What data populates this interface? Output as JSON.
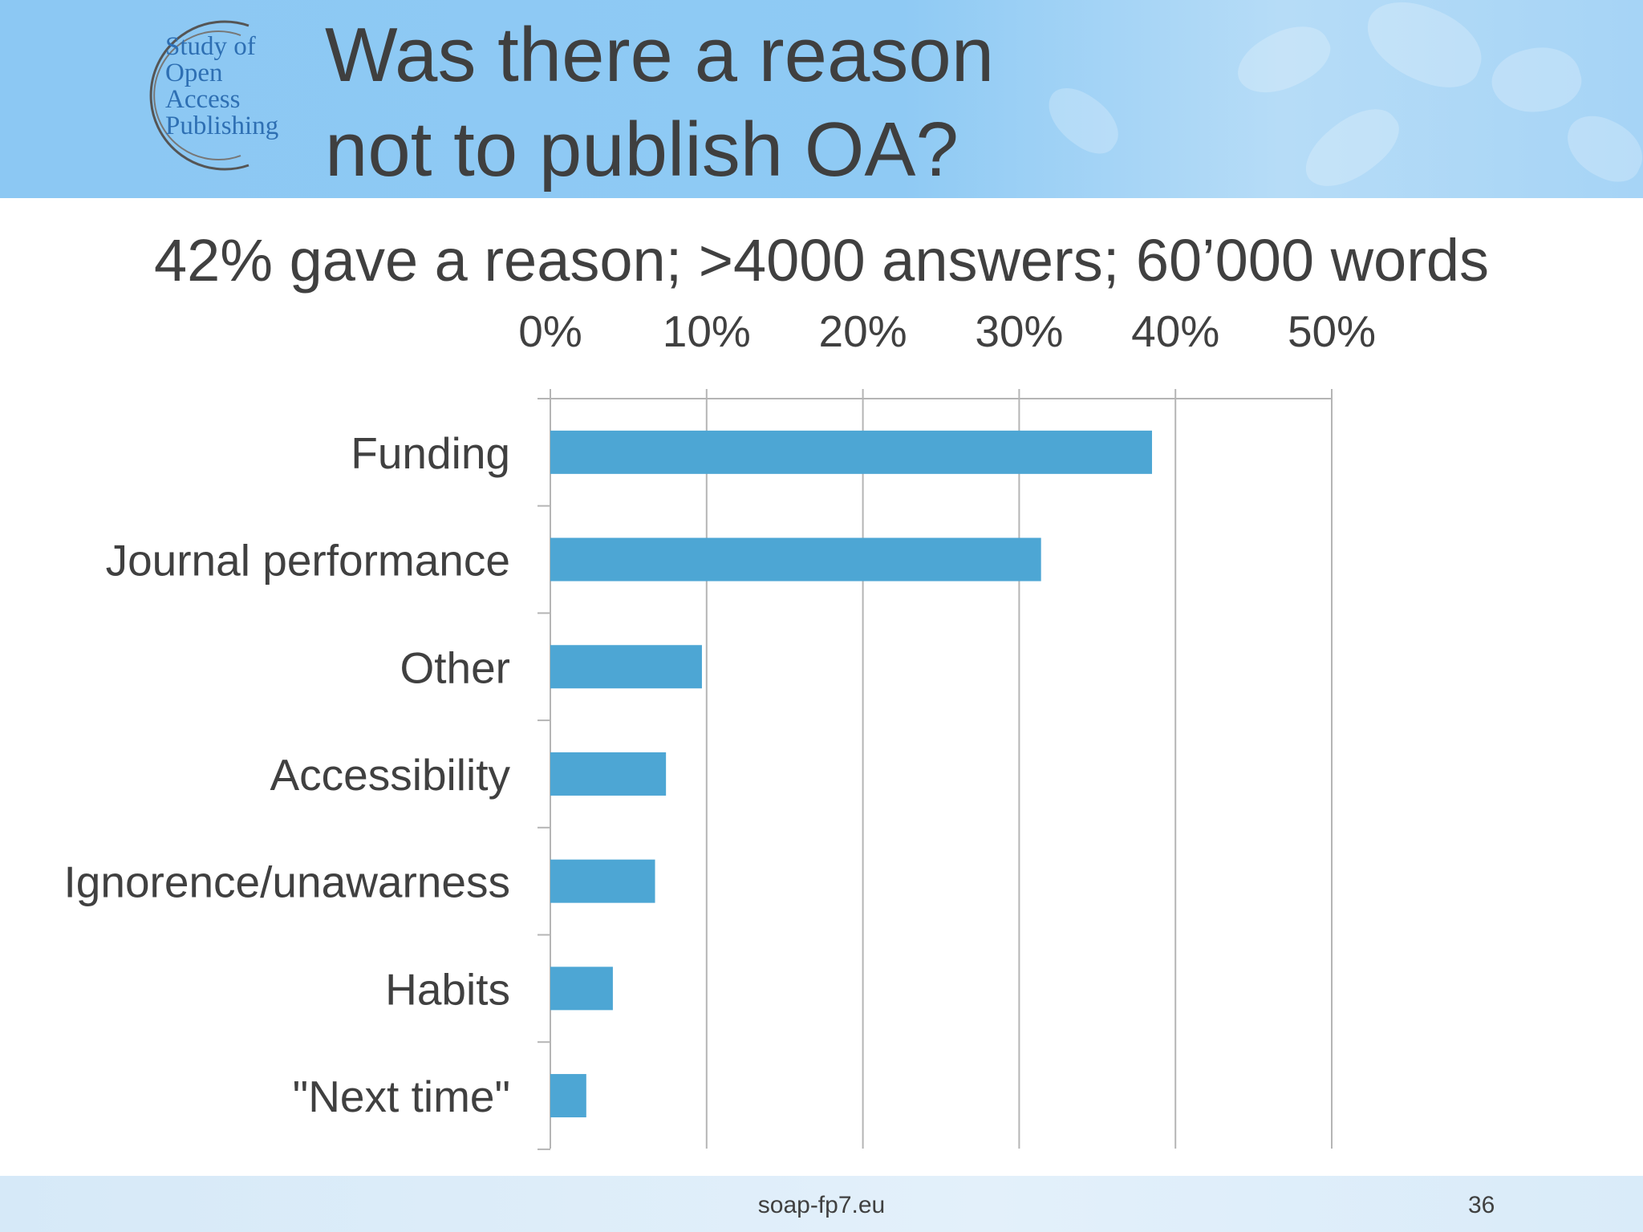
{
  "logo": {
    "lines": [
      "Study of",
      "Open",
      "Access",
      "Publishing"
    ]
  },
  "title": {
    "line1": "Was there a reason",
    "line2": "not to publish OA?"
  },
  "subtitle": "42% gave a reason; >4000 answers; 60’000 words",
  "chart_data": {
    "type": "bar",
    "orientation": "horizontal",
    "categories": [
      "Funding",
      "Journal performance",
      "Other",
      "Accessibility",
      "Ignorence/unawarness",
      "Habits",
      "\"Next time\""
    ],
    "values": [
      38.5,
      31.4,
      9.7,
      7.4,
      6.7,
      4.0,
      2.3
    ],
    "xlim": [
      0,
      50
    ],
    "ticks": [
      0,
      10,
      20,
      30,
      40,
      50
    ],
    "tick_labels": [
      "0%",
      "10%",
      "20%",
      "30%",
      "40%",
      "50%"
    ],
    "x_axis_position": "top",
    "grid": true,
    "bar_color": "#4da6d4",
    "grid_color": "#b5b5b5"
  },
  "footer": {
    "url": "soap-fp7.eu",
    "slide_number": "36"
  }
}
